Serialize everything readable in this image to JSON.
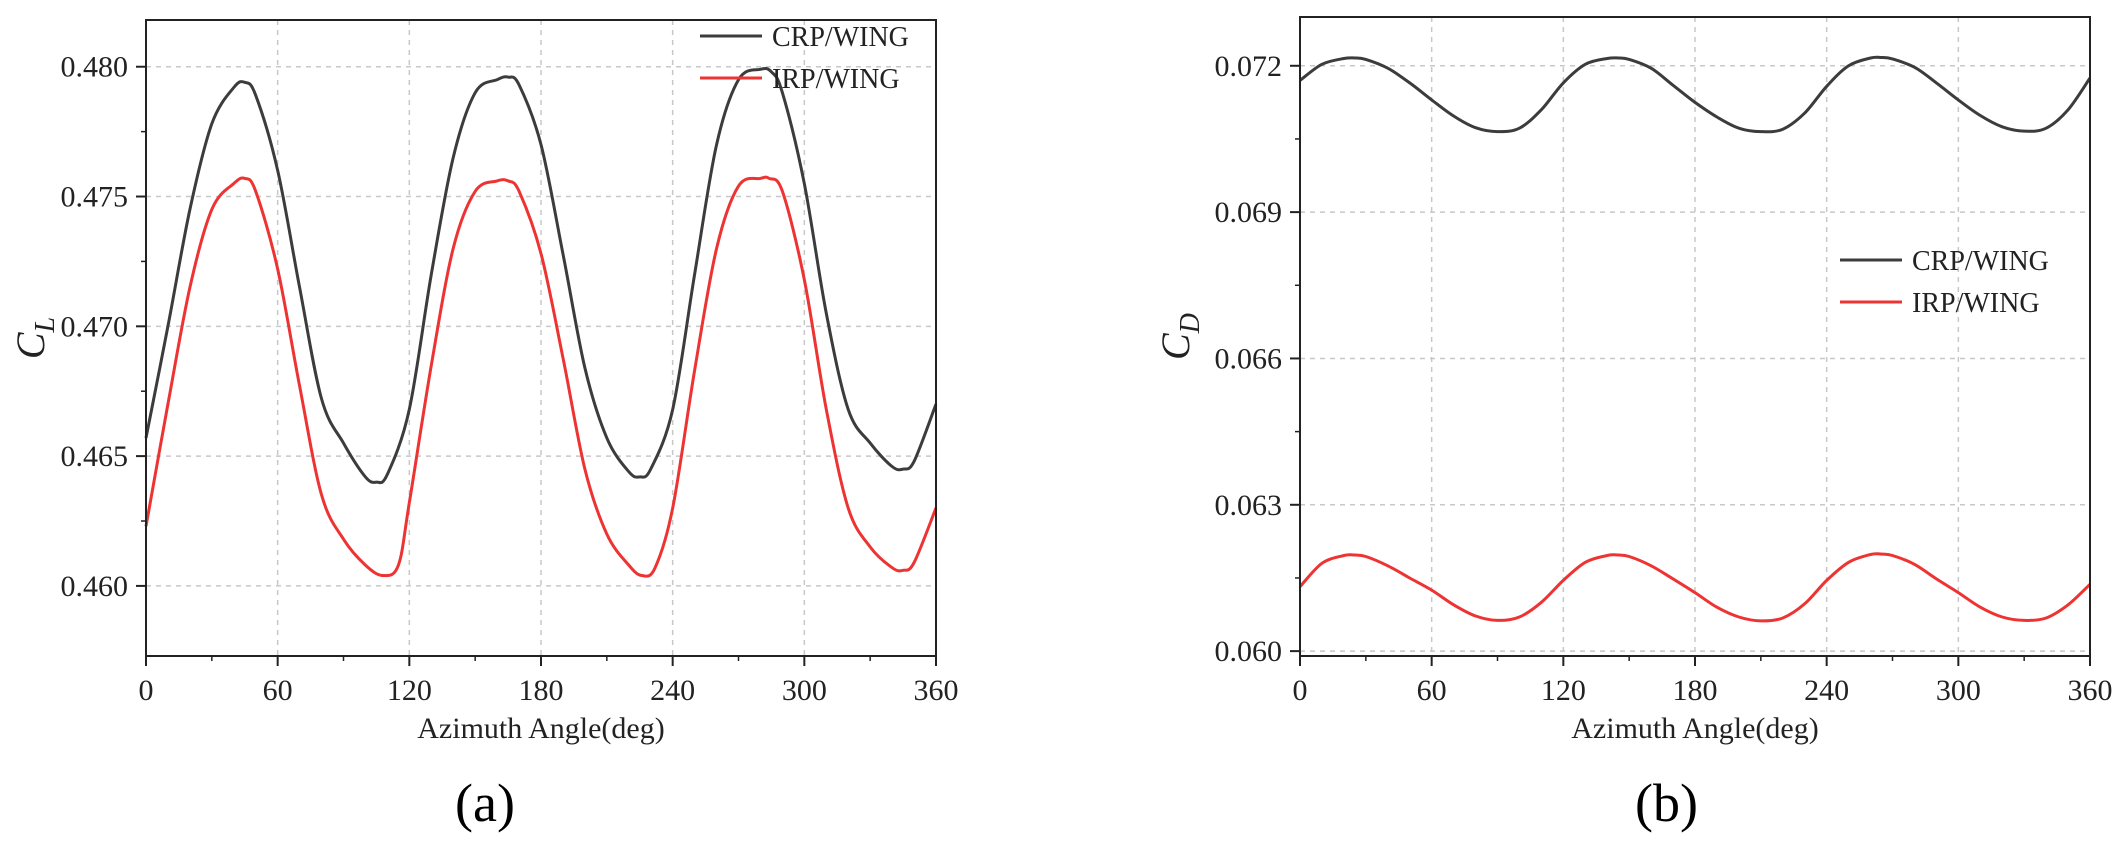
{
  "colors": {
    "crp": "#3c3c3c",
    "irp": "#ee3333",
    "grid": "#c8c8c8",
    "axis": "#222222"
  },
  "panels": [
    {
      "panel_label": "(a)",
      "chart_data": {
        "type": "line",
        "title": "",
        "xlabel": "Azimuth Angle(deg)",
        "ylabel": "CL",
        "ylabel_main": "C",
        "ylabel_sub": "L",
        "xlim": [
          0,
          360
        ],
        "ylim": [
          0.4573,
          0.4818
        ],
        "xticks": [
          0,
          60,
          120,
          180,
          240,
          300,
          360
        ],
        "xtick_labels": [
          "0",
          "60",
          "120",
          "180",
          "240",
          "300",
          "360"
        ],
        "yticks": [
          0.46,
          0.465,
          0.47,
          0.475,
          0.48
        ],
        "ytick_labels": [
          "0.460",
          "0.465",
          "0.470",
          "0.475",
          "0.480"
        ],
        "grid": true,
        "legend_position": "top-right",
        "series": [
          {
            "name": "CRP/WING",
            "color": "#3c3c3c",
            "x": [
              0,
              10,
              20,
              30,
              40,
              45,
              50,
              60,
              70,
              80,
              90,
              100,
              105,
              110,
              120,
              130,
              140,
              150,
              160,
              165,
              170,
              180,
              190,
              200,
              210,
              220,
              225,
              230,
              240,
              250,
              260,
              270,
              280,
              285,
              290,
              300,
              310,
              320,
              330,
              340,
              345,
              350,
              360
            ],
            "y": [
              0.4657,
              0.47,
              0.4745,
              0.4778,
              0.4792,
              0.4794,
              0.4789,
              0.476,
              0.4715,
              0.4672,
              0.4655,
              0.4642,
              0.464,
              0.4643,
              0.4668,
              0.472,
              0.4765,
              0.479,
              0.4795,
              0.4796,
              0.4793,
              0.477,
              0.4728,
              0.4684,
              0.4657,
              0.4644,
              0.4642,
              0.4645,
              0.4668,
              0.472,
              0.477,
              0.4795,
              0.4799,
              0.4798,
              0.479,
              0.4755,
              0.4705,
              0.4668,
              0.4655,
              0.4646,
              0.4645,
              0.4648,
              0.467
            ]
          },
          {
            "name": "IRP/WING",
            "color": "#ee3333",
            "x": [
              0,
              10,
              20,
              30,
              40,
              45,
              50,
              60,
              70,
              80,
              90,
              100,
              108,
              115,
              120,
              130,
              140,
              150,
              160,
              165,
              170,
              180,
              190,
              200,
              210,
              220,
              226,
              232,
              240,
              250,
              260,
              270,
              280,
              284,
              290,
              300,
              310,
              320,
              330,
              340,
              345,
              350,
              360
            ],
            "y": [
              0.4623,
              0.467,
              0.4715,
              0.4745,
              0.4755,
              0.4757,
              0.4752,
              0.4722,
              0.4677,
              0.4635,
              0.4618,
              0.4608,
              0.4604,
              0.4608,
              0.4632,
              0.4685,
              0.473,
              0.4752,
              0.4756,
              0.4756,
              0.4752,
              0.4728,
              0.4688,
              0.4645,
              0.462,
              0.4608,
              0.4604,
              0.4607,
              0.463,
              0.4683,
              0.473,
              0.4754,
              0.4757,
              0.4757,
              0.4752,
              0.4718,
              0.4668,
              0.463,
              0.4615,
              0.4607,
              0.4606,
              0.4609,
              0.463
            ]
          }
        ]
      }
    },
    {
      "panel_label": "(b)",
      "chart_data": {
        "type": "line",
        "title": "",
        "xlabel": "Azimuth Angle(deg)",
        "ylabel": "CD",
        "ylabel_main": "C",
        "ylabel_sub": "D",
        "xlim": [
          0,
          360
        ],
        "ylim": [
          0.0599,
          0.073
        ],
        "xticks": [
          0,
          60,
          120,
          180,
          240,
          300,
          360
        ],
        "xtick_labels": [
          "0",
          "60",
          "120",
          "180",
          "240",
          "300",
          "360"
        ],
        "yticks": [
          0.06,
          0.063,
          0.066,
          0.069,
          0.072
        ],
        "ytick_labels": [
          "0.060",
          "0.063",
          "0.066",
          "0.069",
          "0.072"
        ],
        "grid": true,
        "legend_position": "center-right",
        "series": [
          {
            "name": "CRP/WING",
            "color": "#3c3c3c",
            "x": [
              0,
              10,
              20,
              25,
              30,
              40,
              50,
              60,
              70,
              80,
              90,
              100,
              110,
              120,
              130,
              140,
              145,
              150,
              160,
              170,
              180,
              190,
              200,
              210,
              220,
              230,
              240,
              250,
              260,
              265,
              270,
              280,
              290,
              300,
              310,
              320,
              330,
              340,
              350,
              360
            ],
            "y": [
              0.0717,
              0.07203,
              0.07215,
              0.07216,
              0.07213,
              0.07195,
              0.07165,
              0.0713,
              0.07097,
              0.07073,
              0.07065,
              0.07072,
              0.0711,
              0.07165,
              0.07203,
              0.07215,
              0.07216,
              0.07213,
              0.07195,
              0.0716,
              0.07125,
              0.07095,
              0.07072,
              0.07065,
              0.0707,
              0.07103,
              0.07158,
              0.072,
              0.07216,
              0.07217,
              0.07214,
              0.07197,
              0.07165,
              0.0713,
              0.07098,
              0.07075,
              0.07066,
              0.07072,
              0.0711,
              0.07175
            ]
          },
          {
            "name": "IRP/WING",
            "color": "#ee3333",
            "x": [
              0,
              10,
              20,
              25,
              30,
              40,
              50,
              60,
              70,
              80,
              90,
              100,
              110,
              120,
              130,
              140,
              145,
              150,
              160,
              170,
              180,
              190,
              200,
              210,
              220,
              230,
              240,
              250,
              260,
              265,
              270,
              280,
              290,
              300,
              310,
              320,
              330,
              340,
              350,
              360
            ],
            "y": [
              0.06132,
              0.0618,
              0.06196,
              0.06197,
              0.06194,
              0.06175,
              0.0615,
              0.06125,
              0.06095,
              0.06072,
              0.06063,
              0.0607,
              0.061,
              0.06145,
              0.06182,
              0.06196,
              0.06197,
              0.06194,
              0.06175,
              0.06148,
              0.0612,
              0.0609,
              0.0607,
              0.06062,
              0.06068,
              0.06097,
              0.06145,
              0.06182,
              0.06198,
              0.06199,
              0.06196,
              0.06178,
              0.06148,
              0.0612,
              0.0609,
              0.0607,
              0.06063,
              0.06068,
              0.06095,
              0.06137
            ]
          }
        ]
      }
    }
  ]
}
